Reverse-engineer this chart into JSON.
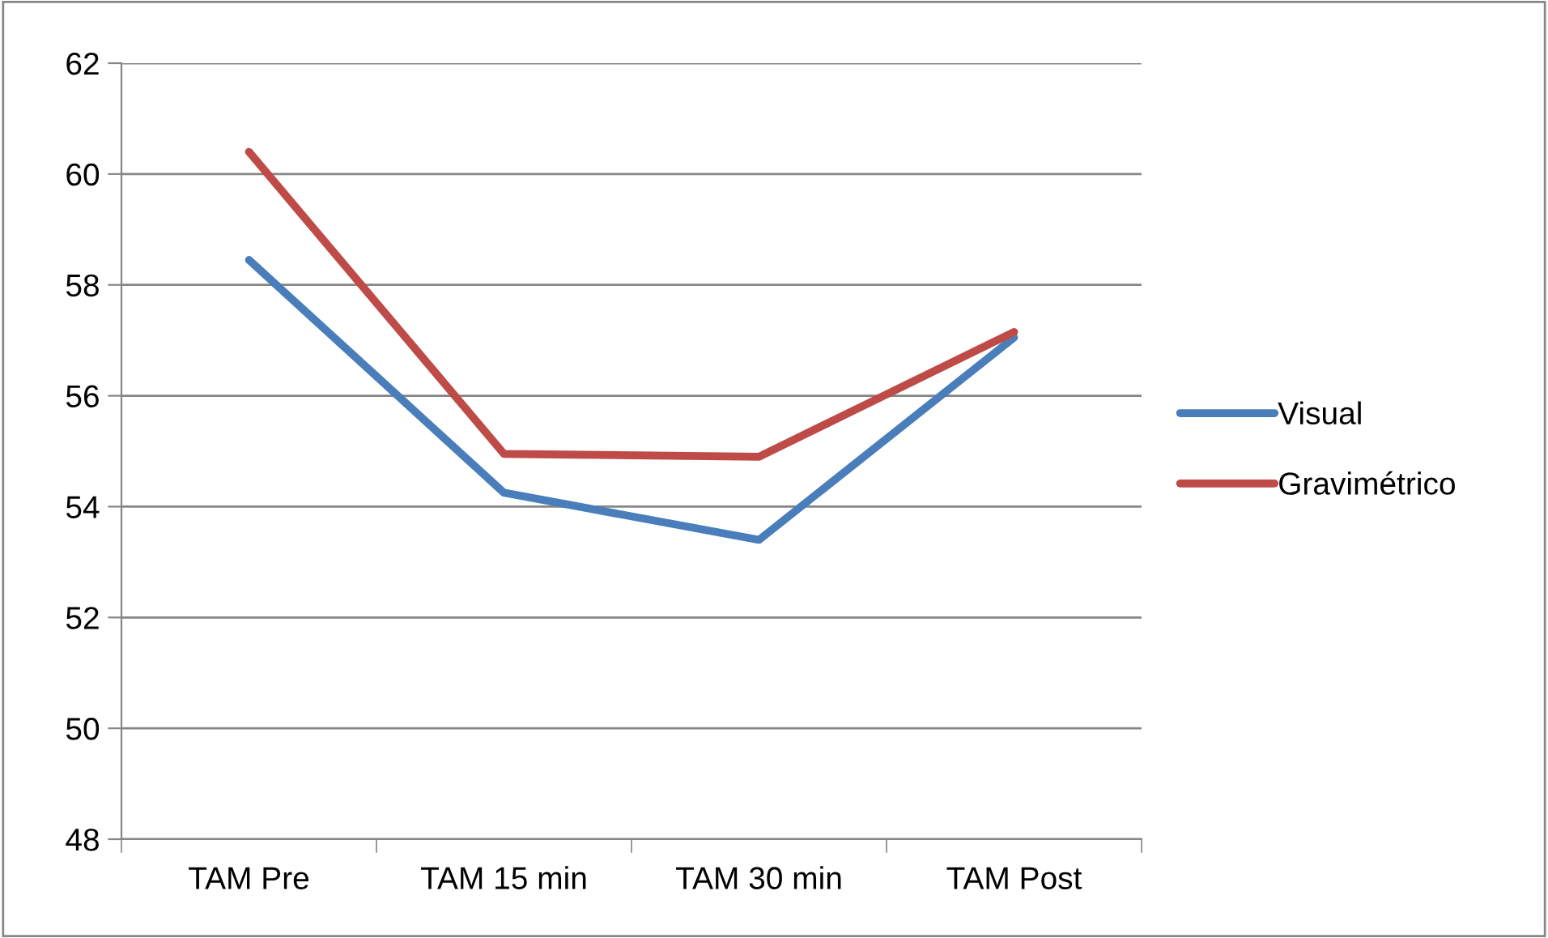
{
  "chart_data": {
    "type": "line",
    "categories": [
      "TAM Pre",
      "TAM 15 min",
      "TAM 30 min",
      "TAM Post"
    ],
    "series": [
      {
        "name": "Visual",
        "color": "#4a7ebb",
        "values": [
          58.45,
          54.25,
          53.4,
          57.05
        ]
      },
      {
        "name": "Gravimétrico",
        "color": "#be4b48",
        "values": [
          60.4,
          54.95,
          54.9,
          57.15
        ]
      }
    ],
    "ylim": [
      48,
      62
    ],
    "yticks": [
      48,
      50,
      52,
      54,
      56,
      58,
      60,
      62
    ],
    "grid": "y",
    "legend": "right",
    "marker": "none",
    "line_style": "solid"
  }
}
